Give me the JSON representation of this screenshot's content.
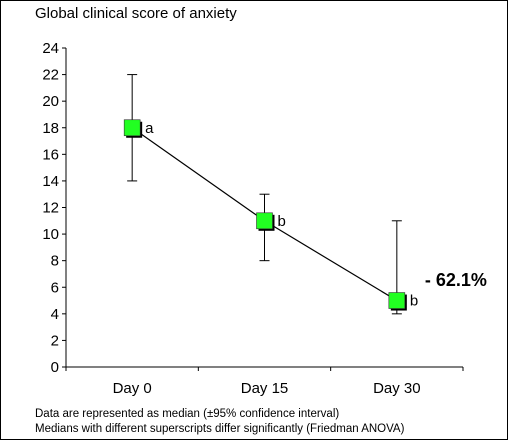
{
  "chart_data": {
    "type": "line",
    "ylabel": "Global clinical score of anxiety",
    "categories": [
      "Day 0",
      "Day 15",
      "Day 30"
    ],
    "values": [
      18,
      11,
      5
    ],
    "ci_low": [
      14,
      8,
      4
    ],
    "ci_high": [
      22,
      13,
      11
    ],
    "superscripts": [
      "a",
      "b",
      "b"
    ],
    "ylim": [
      0,
      24
    ],
    "yticks": [
      "0",
      "2",
      "4",
      "6",
      "8",
      "10",
      "12",
      "14",
      "16",
      "18",
      "20",
      "22",
      "24"
    ],
    "annotation": "- 62.1%",
    "marker_color": "#22ff22",
    "line_color": "#000000",
    "grid": false,
    "legend": "none"
  },
  "notes": {
    "line1": "Data are represented as median (±95% confidence interval)",
    "line2": "Medians with different superscripts differ significantly (Friedman ANOVA)"
  }
}
